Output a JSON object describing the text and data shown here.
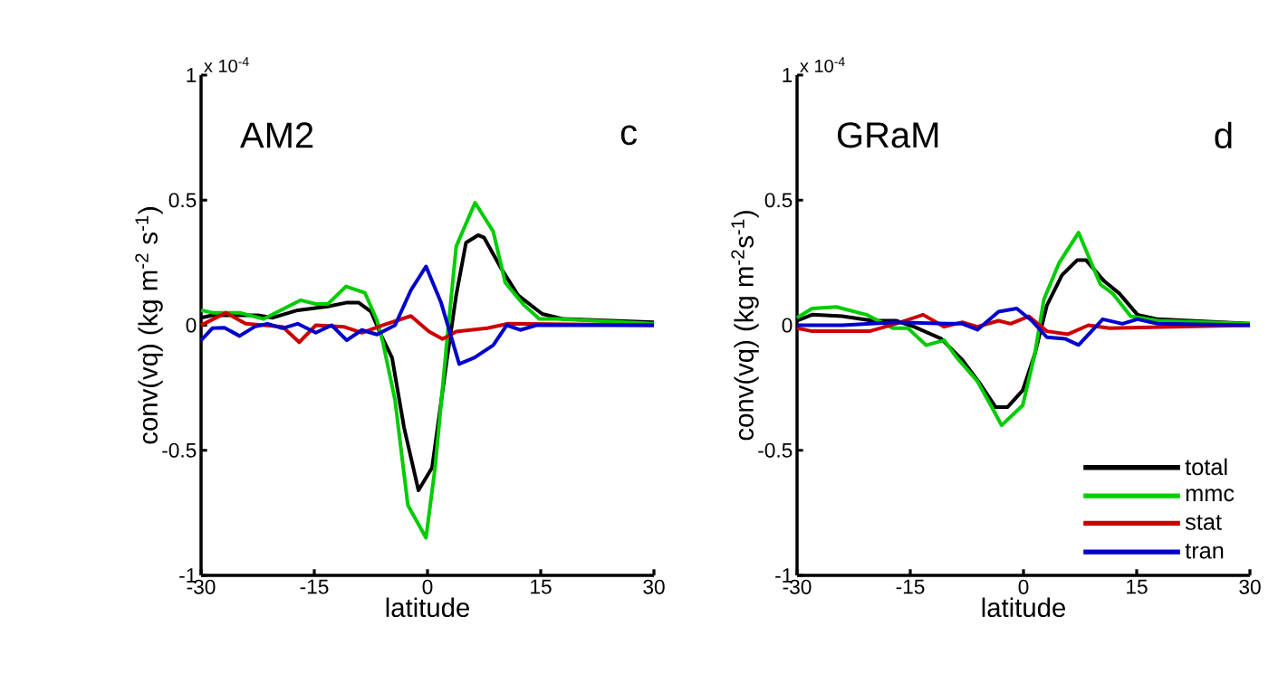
{
  "chart_data": [
    {
      "type": "line",
      "ylabel": "conv(vq) (kg m$^{-2}$ s$^{-1}$)",
      "xlabel": "latitude",
      "annotations": [
        "AM2",
        "c",
        "x 10$^{-4}$"
      ],
      "xlim": [
        -30,
        30
      ],
      "xticks": [
        -30,
        -15,
        0,
        15,
        30
      ],
      "ylim": [
        -1,
        1
      ],
      "yticks": [
        -1,
        -0.5,
        0,
        0.5,
        1
      ],
      "series": [
        {
          "color": "#000000",
          "x": [
            -30,
            -28.5,
            -22.5,
            -20.5,
            -17.2,
            -13.2,
            -10.8,
            -9.1,
            -7.5,
            -6.3,
            -4.7,
            -3.1,
            -1.2,
            0.6,
            2.6,
            3.8,
            5.1,
            6.7,
            7.5,
            9.9,
            12.0,
            15.2,
            18.0,
            30
          ],
          "values": [
            0.03,
            0.04,
            0.04,
            0.03,
            0.06,
            0.075,
            0.09,
            0.09,
            0.055,
            -0.03,
            -0.13,
            -0.41,
            -0.66,
            -0.57,
            -0.13,
            0.12,
            0.33,
            0.36,
            0.35,
            0.22,
            0.12,
            0.045,
            0.025,
            0.012
          ]
        },
        {
          "color": "#00cc00",
          "x": [
            -30,
            -28.5,
            -24.9,
            -21.7,
            -16.8,
            -14.8,
            -13.2,
            -10.8,
            -8.3,
            -6.7,
            -5.9,
            -4.3,
            -2.6,
            -0.2,
            1.0,
            2.6,
            3.8,
            6.3,
            8.7,
            10.3,
            12.8,
            14.8,
            17.2,
            30
          ],
          "values": [
            0.06,
            0.05,
            0.05,
            0.025,
            0.1,
            0.085,
            0.085,
            0.155,
            0.13,
            0.02,
            -0.07,
            -0.3,
            -0.72,
            -0.85,
            -0.57,
            -0.055,
            0.315,
            0.49,
            0.375,
            0.17,
            0.08,
            0.025,
            0.025,
            0.006
          ]
        },
        {
          "color": "#cc0000",
          "x": [
            -30,
            -26.7,
            -24.1,
            -19.2,
            -17.0,
            -14.8,
            -11.1,
            -8.7,
            -5.9,
            -2.2,
            0.2,
            2.0,
            3.8,
            7.9,
            10.7,
            30
          ],
          "values": [
            0,
            0.05,
            0.006,
            -0.006,
            -0.068,
            0,
            -0.006,
            -0.03,
            0,
            0.037,
            -0.025,
            -0.055,
            -0.025,
            -0.012,
            0.006,
            0
          ]
        },
        {
          "color": "#0000cc",
          "x": [
            -30,
            -28.5,
            -26.9,
            -24.9,
            -22.9,
            -21.2,
            -19.2,
            -17.2,
            -14.8,
            -12.7,
            -10.7,
            -8.7,
            -6.7,
            -4.3,
            -2.2,
            -0.2,
            1.8,
            4.2,
            6.2,
            8.7,
            10.5,
            12.3,
            14.4,
            30
          ],
          "values": [
            -0.06,
            -0.012,
            -0.01,
            -0.043,
            -0.006,
            0.006,
            -0.012,
            0.006,
            -0.03,
            0,
            -0.06,
            -0.019,
            -0.037,
            0,
            0.14,
            0.235,
            0.09,
            -0.155,
            -0.13,
            -0.08,
            0,
            -0.019,
            0,
            0
          ]
        }
      ]
    },
    {
      "type": "line",
      "ylabel": "conv(vq) (kg m$^{-2}$s$^{-1}$)",
      "xlabel": "latitude",
      "annotations": [
        "GRaM",
        "d",
        "x 10$^{-4}$"
      ],
      "xlim": [
        -30,
        30
      ],
      "xticks": [
        -30,
        -15,
        0,
        15,
        30
      ],
      "ylim": [
        -1,
        1
      ],
      "yticks": [
        -1,
        -0.5,
        0,
        0.5,
        1
      ],
      "legend": "bottom right",
      "series": [
        {
          "name": "total",
          "color": "#000000",
          "x": [
            -30,
            -28.0,
            -24.0,
            -20.0,
            -16.9,
            -14.5,
            -10.9,
            -8.1,
            -5.7,
            -3.7,
            -2.1,
            -0.1,
            1.5,
            3.1,
            5.1,
            7.1,
            8.3,
            10.7,
            12.7,
            15.1,
            17.8,
            30
          ],
          "values": [
            0.018,
            0.042,
            0.036,
            0.018,
            0.018,
            -0.006,
            -0.054,
            -0.139,
            -0.236,
            -0.327,
            -0.327,
            -0.26,
            -0.115,
            0.079,
            0.2,
            0.26,
            0.26,
            0.176,
            0.127,
            0.042,
            0.024,
            0.006
          ]
        },
        {
          "name": "mmc",
          "color": "#00cc00",
          "x": [
            -30,
            -28.0,
            -24.8,
            -20.8,
            -17.3,
            -15.3,
            -12.9,
            -10.5,
            -8.9,
            -6.1,
            -4.1,
            -2.9,
            -0.1,
            1.5,
            2.7,
            4.7,
            7.3,
            10.2,
            11.8,
            14.2,
            17.8,
            30
          ],
          "values": [
            0.03,
            0.067,
            0.073,
            0.042,
            -0.012,
            -0.012,
            -0.08,
            -0.06,
            -0.127,
            -0.224,
            -0.333,
            -0.4,
            -0.32,
            -0.115,
            0.103,
            0.248,
            0.37,
            0.163,
            0.127,
            0.036,
            0.018,
            0.006
          ]
        },
        {
          "name": "stat",
          "color": "#cc0000",
          "x": [
            -30,
            -28,
            -24,
            -20.4,
            -16.9,
            -13.3,
            -10.5,
            -8.1,
            -6.1,
            -3.3,
            -1.7,
            0.7,
            3.1,
            5.9,
            8.6,
            11.4,
            30
          ],
          "values": [
            -0.012,
            -0.024,
            -0.024,
            -0.024,
            0.006,
            0.042,
            -0.006,
            0.012,
            -0.006,
            0.018,
            0.006,
            0.036,
            -0.024,
            -0.036,
            0,
            -0.012,
            0
          ]
        },
        {
          "name": "tran",
          "color": "#0000cc",
          "x": [
            -30,
            -24,
            -16.9,
            -10.1,
            -8.1,
            -6.1,
            -3.3,
            -0.9,
            1.1,
            3.1,
            5.5,
            7.3,
            10.5,
            13.1,
            15.1,
            17.8,
            30
          ],
          "values": [
            0,
            0,
            0.012,
            0.006,
            0.006,
            -0.018,
            0.054,
            0.067,
            0.018,
            -0.048,
            -0.054,
            -0.079,
            0.024,
            0.006,
            0.024,
            0.006,
            0
          ]
        }
      ]
    }
  ]
}
